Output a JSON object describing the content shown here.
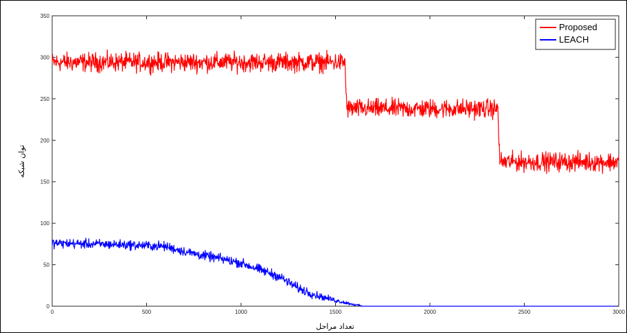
{
  "chart_data": {
    "type": "line",
    "title": "",
    "xlabel": "تعداد مراحل",
    "ylabel": "توان شبکه",
    "xlim": [
      0,
      3000
    ],
    "ylim": [
      0,
      350
    ],
    "xticks": [
      "0",
      "500",
      "1000",
      "1500",
      "2000",
      "2500",
      "3000"
    ],
    "yticks": [
      "0",
      "50",
      "100",
      "150",
      "200",
      "250",
      "300",
      "350"
    ],
    "grid": false,
    "legend_position": "top-right",
    "series": [
      {
        "name": "Proposed",
        "color": "#ff0000",
        "noise": 8,
        "points": [
          [
            0,
            294
          ],
          [
            1550,
            294
          ],
          [
            1560,
            238
          ],
          [
            2360,
            238
          ],
          [
            2370,
            174
          ],
          [
            3000,
            174
          ]
        ]
      },
      {
        "name": "LEACH",
        "color": "#0000ff",
        "noise": 4,
        "points": [
          [
            0,
            76
          ],
          [
            400,
            74
          ],
          [
            600,
            72
          ],
          [
            700,
            66
          ],
          [
            800,
            61
          ],
          [
            900,
            57
          ],
          [
            1000,
            52
          ],
          [
            1100,
            44
          ],
          [
            1200,
            36
          ],
          [
            1300,
            22
          ],
          [
            1400,
            13
          ],
          [
            1500,
            7
          ],
          [
            1600,
            2
          ],
          [
            1650,
            0
          ],
          [
            3000,
            0
          ]
        ]
      }
    ]
  }
}
